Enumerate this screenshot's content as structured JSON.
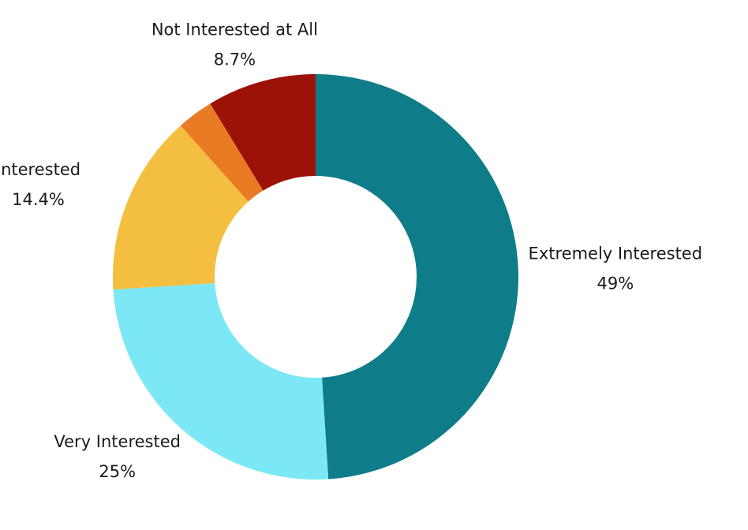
{
  "chart_data": {
    "type": "donut",
    "categories": [
      "Extremely Interested",
      "Very Interested",
      "Interested",
      null,
      "Not Interested at All"
    ],
    "values": [
      49,
      25,
      14.4,
      2.9,
      8.7
    ],
    "value_labels": [
      "49%",
      "25%",
      "14.4%",
      null,
      "8.7%"
    ],
    "colors": [
      "#0e7c89",
      "#7de8f5",
      "#f4bf40",
      "#e87b24",
      "#9c1206"
    ]
  }
}
